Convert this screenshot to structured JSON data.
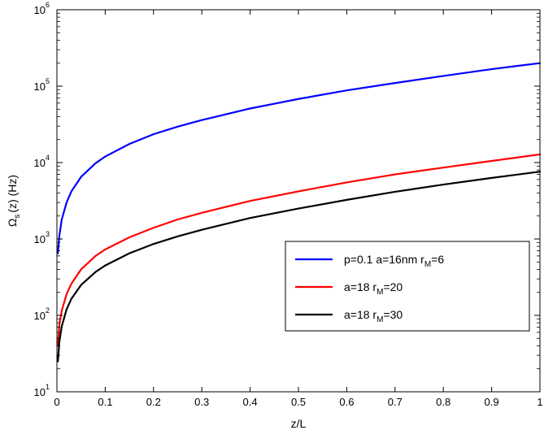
{
  "chart_data": {
    "type": "line",
    "xlabel": "z/L",
    "ylabel": {
      "base": "Ω",
      "sub": "s",
      "rest": "(z) (Hz)"
    },
    "xlim": [
      0,
      1
    ],
    "ylim": [
      10,
      1000000
    ],
    "yscale": "log",
    "grid": false,
    "legend_position": "lower-right",
    "x_ticks": [
      "0",
      "0.1",
      "0.2",
      "0.3",
      "0.4",
      "0.5",
      "0.6",
      "0.7",
      "0.8",
      "0.9",
      "1"
    ],
    "y_ticks": [
      {
        "base": "10",
        "exp": "1"
      },
      {
        "base": "10",
        "exp": "2"
      },
      {
        "base": "10",
        "exp": "3"
      },
      {
        "base": "10",
        "exp": "4"
      },
      {
        "base": "10",
        "exp": "5"
      },
      {
        "base": "10",
        "exp": "6"
      }
    ],
    "x": [
      0.002,
      0.005,
      0.01,
      0.02,
      0.03,
      0.05,
      0.08,
      0.1,
      0.15,
      0.2,
      0.25,
      0.3,
      0.4,
      0.5,
      0.6,
      0.7,
      0.8,
      0.9,
      1.0
    ],
    "series": [
      {
        "name": "p=0.1 a=16nm r_M=6",
        "legend": {
          "pre": "p=0.1 a=16nm r",
          "sub": "M",
          "post": "=6"
        },
        "color": "#0000ff",
        "values": [
          650,
          1100,
          1800,
          3000,
          4200,
          6500,
          9800,
          12000,
          17500,
          23500,
          29500,
          36000,
          51000,
          68000,
          88000,
          110000,
          136000,
          167000,
          200000
        ]
      },
      {
        "name": "a=18 r_M=20",
        "legend": {
          "pre": "a=18 r",
          "sub": "M",
          "post": "=20"
        },
        "color": "#ff0000",
        "values": [
          40,
          75,
          115,
          190,
          260,
          400,
          600,
          730,
          1050,
          1400,
          1800,
          2200,
          3150,
          4200,
          5500,
          7000,
          8600,
          10500,
          12800
        ]
      },
      {
        "name": "a=18 r_M=30",
        "legend": {
          "pre": "a=18 r",
          "sub": "M",
          "post": "=30"
        },
        "color": "#000000",
        "values": [
          25,
          45,
          72,
          120,
          165,
          250,
          370,
          450,
          650,
          860,
          1080,
          1320,
          1880,
          2500,
          3250,
          4150,
          5150,
          6300,
          7600
        ]
      }
    ]
  }
}
